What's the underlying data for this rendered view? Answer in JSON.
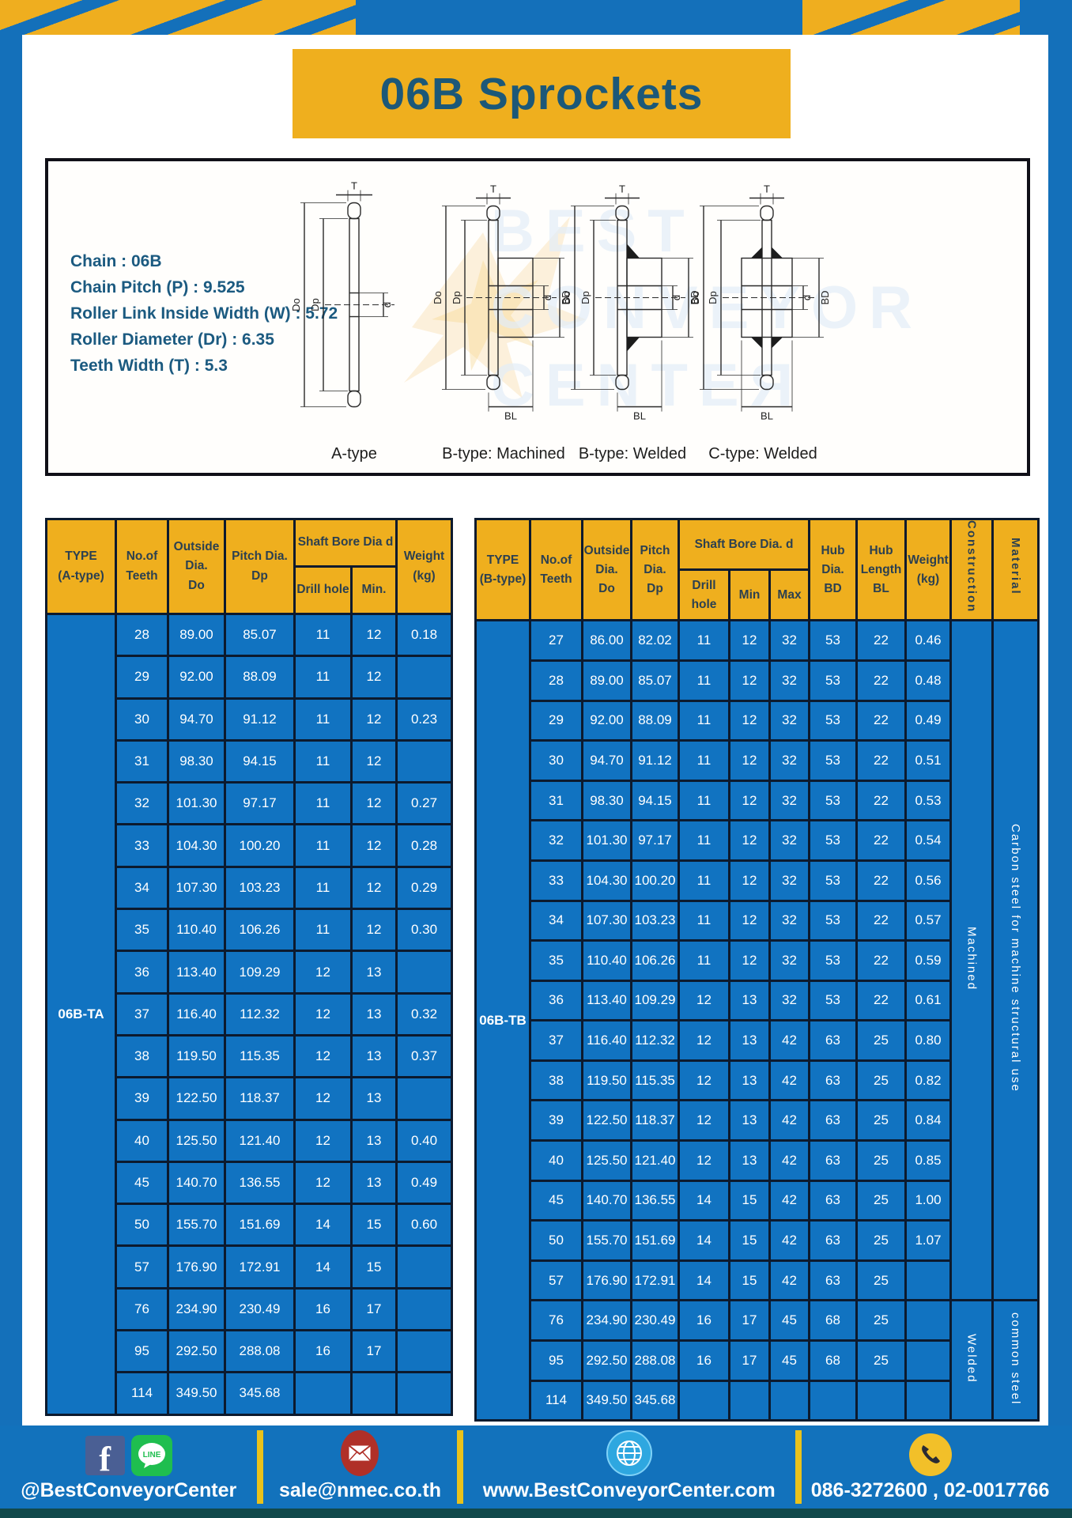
{
  "page": {
    "title": "06B Sprockets"
  },
  "specs": {
    "lines": [
      "Chain : 06B",
      "Chain Pitch (P) : 9.525",
      "Roller Link Inside Width (W) : 5.72",
      "Roller Diameter (Dr) : 6.35",
      "Teeth Width (T) : 5.3"
    ]
  },
  "watermark": {
    "text": "BEST CONVEYOR CENTER"
  },
  "diagrams": {
    "captions": [
      "A-type",
      "B-type: Machined",
      "B-type: Welded",
      "C-type: Welded"
    ],
    "dims": {
      "T": "T",
      "Do": "Do",
      "Dp": "Dp",
      "d": "d",
      "BD": "BD",
      "BL": "BL"
    }
  },
  "colors": {
    "frame_blue": "#1470ba",
    "gold": "#efaf1e",
    "cell_blue": "#1173c1",
    "grid_navy": "#0c1a2e",
    "title_blue": "#1c5878",
    "footer_strip_teal": "#11494b"
  },
  "tables": {
    "a": {
      "type_label": "06B-TA",
      "headers": {
        "type": "TYPE\n(A-type)",
        "teeth": "No.of\nTeeth",
        "outside": "Outside\nDia.\nDo",
        "pitch": "Pitch Dia.\nDp",
        "shaft_group": "Shaft Bore Dia d",
        "drill": "Drill hole",
        "min": "Min.",
        "weight": "Weight\n(kg)"
      },
      "rows": [
        [
          "28",
          "89.00",
          "85.07",
          "11",
          "12",
          "0.18"
        ],
        [
          "29",
          "92.00",
          "88.09",
          "11",
          "12",
          ""
        ],
        [
          "30",
          "94.70",
          "91.12",
          "11",
          "12",
          "0.23"
        ],
        [
          "31",
          "98.30",
          "94.15",
          "11",
          "12",
          ""
        ],
        [
          "32",
          "101.30",
          "97.17",
          "11",
          "12",
          "0.27"
        ],
        [
          "33",
          "104.30",
          "100.20",
          "11",
          "12",
          "0.28"
        ],
        [
          "34",
          "107.30",
          "103.23",
          "11",
          "12",
          "0.29"
        ],
        [
          "35",
          "110.40",
          "106.26",
          "11",
          "12",
          "0.30"
        ],
        [
          "36",
          "113.40",
          "109.29",
          "12",
          "13",
          ""
        ],
        [
          "37",
          "116.40",
          "112.32",
          "12",
          "13",
          "0.32"
        ],
        [
          "38",
          "119.50",
          "115.35",
          "12",
          "13",
          "0.37"
        ],
        [
          "39",
          "122.50",
          "118.37",
          "12",
          "13",
          ""
        ],
        [
          "40",
          "125.50",
          "121.40",
          "12",
          "13",
          "0.40"
        ],
        [
          "45",
          "140.70",
          "136.55",
          "12",
          "13",
          "0.49"
        ],
        [
          "50",
          "155.70",
          "151.69",
          "14",
          "15",
          "0.60"
        ],
        [
          "57",
          "176.90",
          "172.91",
          "14",
          "15",
          ""
        ],
        [
          "76",
          "234.90",
          "230.49",
          "16",
          "17",
          ""
        ],
        [
          "95",
          "292.50",
          "288.08",
          "16",
          "17",
          ""
        ],
        [
          "114",
          "349.50",
          "345.68",
          "",
          "",
          ""
        ]
      ],
      "groups": []
    },
    "b": {
      "type_label": "06B-TB",
      "headers": {
        "type": "TYPE\n(B-type)",
        "teeth": "No.of\nTeeth",
        "outside": "Outside\nDia.\nDo",
        "pitch": "Pitch\nDia.\nDp",
        "shaft_group": "Shaft Bore Dia. d",
        "drill": "Drill hole",
        "min": "Min",
        "max": "Max",
        "hub_dia": "Hub\nDia.\nBD",
        "hub_len": "Hub\nLength\nBL",
        "weight": "Weight\n(kg)",
        "construction": "Construction",
        "material": "Material"
      },
      "rows": [
        [
          "27",
          "86.00",
          "82.02",
          "11",
          "12",
          "32",
          "53",
          "22",
          "0.46"
        ],
        [
          "28",
          "89.00",
          "85.07",
          "11",
          "12",
          "32",
          "53",
          "22",
          "0.48"
        ],
        [
          "29",
          "92.00",
          "88.09",
          "11",
          "12",
          "32",
          "53",
          "22",
          "0.49"
        ],
        [
          "30",
          "94.70",
          "91.12",
          "11",
          "12",
          "32",
          "53",
          "22",
          "0.51"
        ],
        [
          "31",
          "98.30",
          "94.15",
          "11",
          "12",
          "32",
          "53",
          "22",
          "0.53"
        ],
        [
          "32",
          "101.30",
          "97.17",
          "11",
          "12",
          "32",
          "53",
          "22",
          "0.54"
        ],
        [
          "33",
          "104.30",
          "100.20",
          "11",
          "12",
          "32",
          "53",
          "22",
          "0.56"
        ],
        [
          "34",
          "107.30",
          "103.23",
          "11",
          "12",
          "32",
          "53",
          "22",
          "0.57"
        ],
        [
          "35",
          "110.40",
          "106.26",
          "11",
          "12",
          "32",
          "53",
          "22",
          "0.59"
        ],
        [
          "36",
          "113.40",
          "109.29",
          "12",
          "13",
          "32",
          "53",
          "22",
          "0.61"
        ],
        [
          "37",
          "116.40",
          "112.32",
          "12",
          "13",
          "42",
          "63",
          "25",
          "0.80"
        ],
        [
          "38",
          "119.50",
          "115.35",
          "12",
          "13",
          "42",
          "63",
          "25",
          "0.82"
        ],
        [
          "39",
          "122.50",
          "118.37",
          "12",
          "13",
          "42",
          "63",
          "25",
          "0.84"
        ],
        [
          "40",
          "125.50",
          "121.40",
          "12",
          "13",
          "42",
          "63",
          "25",
          "0.85"
        ],
        [
          "45",
          "140.70",
          "136.55",
          "14",
          "15",
          "42",
          "63",
          "25",
          "1.00"
        ],
        [
          "50",
          "155.70",
          "151.69",
          "14",
          "15",
          "42",
          "63",
          "25",
          "1.07"
        ],
        [
          "57",
          "176.90",
          "172.91",
          "14",
          "15",
          "42",
          "63",
          "25",
          ""
        ],
        [
          "76",
          "234.90",
          "230.49",
          "16",
          "17",
          "45",
          "68",
          "25",
          ""
        ],
        [
          "95",
          "292.50",
          "288.08",
          "16",
          "17",
          "45",
          "68",
          "25",
          ""
        ],
        [
          "114",
          "349.50",
          "345.68",
          "",
          "",
          "",
          "",
          "",
          ""
        ]
      ],
      "groups": [
        {
          "name": "construction",
          "items": [
            {
              "label": "Machined",
              "start": 0,
              "span": 17
            },
            {
              "label": "Welded",
              "start": 17,
              "span": 3
            }
          ]
        },
        {
          "name": "material",
          "items": [
            {
              "label": "Carbon steel for machine structural use",
              "start": 0,
              "span": 17
            },
            {
              "label": "common steel",
              "start": 17,
              "span": 3
            }
          ]
        }
      ]
    }
  },
  "footer": {
    "social_label": "@BestConveyorCenter",
    "line_text": "LINE",
    "email": "sale@nmec.co.th",
    "website": "www.BestConveyorCenter.com",
    "phones": "086-3272600 , 02-0017766"
  }
}
